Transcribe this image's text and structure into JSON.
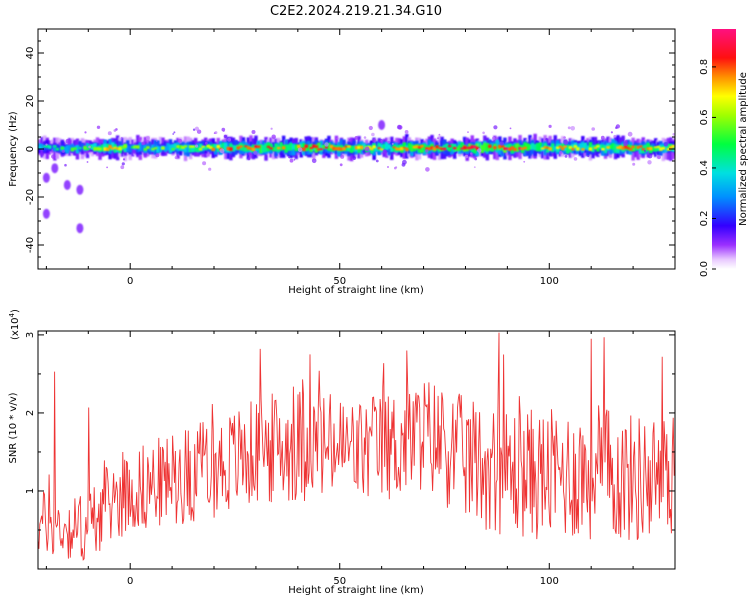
{
  "title": "C2E2.2024.219.21.34.G10",
  "chart_data": [
    {
      "type": "heatmap",
      "xlabel": "Height of straight line (km)",
      "ylabel": "Frequency (Hz)",
      "xlim": [
        -22,
        130
      ],
      "ylim": [
        -50,
        50
      ],
      "xticks": [
        0,
        50,
        100
      ],
      "yticks": [
        -40,
        -20,
        0,
        20,
        40
      ],
      "colorbar": {
        "label": "Normalized spectral amplitude",
        "range": [
          0,
          0.95
        ],
        "ticks": [
          "0.0",
          "0.2",
          "0.4",
          "0.6",
          "0.8"
        ],
        "tick_values": [
          0.0,
          0.2,
          0.4,
          0.6,
          0.8
        ]
      },
      "band": {
        "center_hz": 0.5,
        "halfwidth_hz": 4,
        "core_amplitude_by_height": [
          {
            "x": -20,
            "amp": 0.45
          },
          {
            "x": -10,
            "amp": 0.55
          },
          {
            "x": -5,
            "amp": 0.8
          },
          {
            "x": 0,
            "amp": 0.55
          },
          {
            "x": 10,
            "amp": 0.6
          },
          {
            "x": 20,
            "amp": 0.75
          },
          {
            "x": 25,
            "amp": 0.85
          },
          {
            "x": 35,
            "amp": 0.8
          },
          {
            "x": 45,
            "amp": 0.85
          },
          {
            "x": 55,
            "amp": 0.75
          },
          {
            "x": 70,
            "amp": 0.85
          },
          {
            "x": 80,
            "amp": 0.9
          },
          {
            "x": 92,
            "amp": 0.9
          },
          {
            "x": 100,
            "amp": 0.75
          },
          {
            "x": 110,
            "amp": 0.75
          },
          {
            "x": 120,
            "amp": 0.85
          },
          {
            "x": 128,
            "amp": 0.7
          }
        ]
      },
      "outliers": [
        {
          "x": -20,
          "y": -12
        },
        {
          "x": -18,
          "y": -8
        },
        {
          "x": -15,
          "y": -15
        },
        {
          "x": -12,
          "y": -17
        },
        {
          "x": -20,
          "y": -27
        },
        {
          "x": -12,
          "y": -33
        },
        {
          "x": 60,
          "y": 10
        }
      ]
    },
    {
      "type": "line",
      "xlabel": "Height of straight line (km)",
      "ylabel": "SNR (10 * v/v)",
      "yscale_label": "(x10",
      "yscale_exp": "4",
      "yscale_close": ")",
      "xlim": [
        -22,
        130
      ],
      "ylim": [
        0,
        3.05
      ],
      "xticks": [
        0,
        50,
        100
      ],
      "yticks": [
        1,
        2,
        3
      ],
      "color": "#ee3333",
      "series": [
        {
          "x": [
            -22,
            -20,
            -15,
            -10,
            -5,
            0,
            10,
            20,
            30,
            40,
            50,
            55,
            60,
            65,
            70,
            75,
            80,
            90,
            100,
            110,
            120,
            130
          ],
          "mean": [
            0.55,
            0.6,
            0.5,
            0.55,
            0.85,
            1.0,
            1.15,
            1.3,
            1.5,
            1.6,
            1.55,
            1.5,
            1.55,
            1.6,
            1.75,
            1.6,
            1.4,
            1.25,
            1.2,
            1.25,
            1.15,
            1.2
          ],
          "spread": [
            0.4,
            0.45,
            0.4,
            0.5,
            0.5,
            0.55,
            0.6,
            0.65,
            0.7,
            0.75,
            0.7,
            0.7,
            0.7,
            0.75,
            0.75,
            0.8,
            0.8,
            0.85,
            0.85,
            0.9,
            0.85,
            0.8
          ]
        }
      ],
      "peaks": [
        {
          "x": -18,
          "y": 2.53
        },
        {
          "x": -10,
          "y": 2.07
        },
        {
          "x": 31,
          "y": 2.82
        },
        {
          "x": 43,
          "y": 2.75
        },
        {
          "x": 66,
          "y": 2.8
        },
        {
          "x": 88,
          "y": 3.03
        },
        {
          "x": 110,
          "y": 2.95
        },
        {
          "x": 113,
          "y": 2.97
        },
        {
          "x": 127,
          "y": 2.72
        }
      ]
    }
  ]
}
